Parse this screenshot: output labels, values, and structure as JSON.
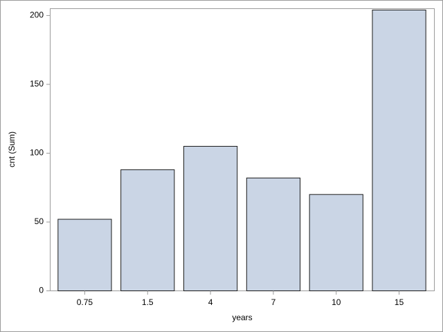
{
  "chart_data": {
    "type": "bar",
    "x_label": "years",
    "y_label": "cnt (Sum)",
    "categories": [
      "0.75",
      "1.5",
      "4",
      "7",
      "10",
      "15"
    ],
    "values": [
      52,
      88,
      105,
      82,
      70,
      204
    ],
    "color": "#cad5e5",
    "ylim": [
      0,
      205
    ],
    "yticks": [
      0,
      50,
      100,
      150,
      200
    ],
    "grid": false
  }
}
